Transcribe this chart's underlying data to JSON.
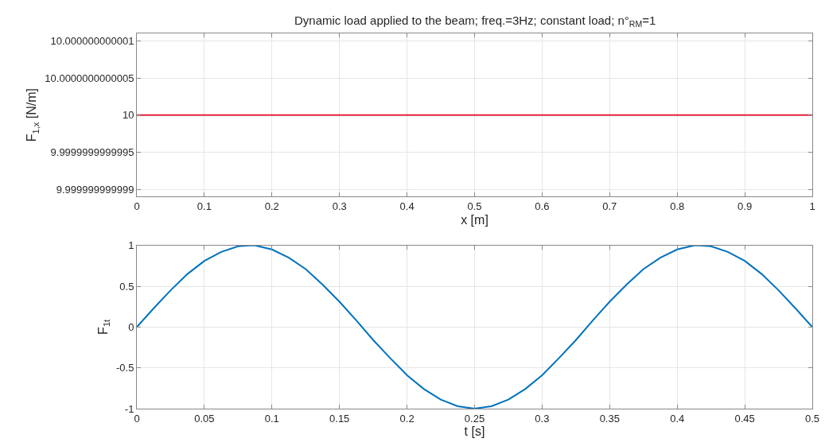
{
  "chart_data": [
    {
      "type": "line",
      "title": "Dynamic load applied to the beam; freq.=3Hz; constant load; n°$_{RM}$=1",
      "xlabel": "x [m]",
      "ylabel": "F$_{1,x}$ [N/m]",
      "x": [
        0,
        0.25,
        0.5,
        0.75,
        1
      ],
      "series": [
        {
          "color": "#e4213b",
          "values": [
            10,
            10,
            10,
            10,
            10
          ]
        }
      ],
      "xlim": [
        0,
        1
      ],
      "xticks": [
        0,
        0.1,
        0.2,
        0.3,
        0.4,
        0.5,
        0.6,
        0.7,
        0.8,
        0.9,
        1
      ],
      "ylim": [
        9.9999999999989,
        10.0000000000011
      ],
      "yticks": [
        {
          "value": 9.999999999999,
          "label": "9.999999999999"
        },
        {
          "value": 9.9999999999995,
          "label": "9.9999999999995"
        },
        10,
        {
          "value": 10.0000000000005,
          "label": "10.0000000000005"
        },
        {
          "value": 10.000000000001,
          "label": "10.000000000001"
        }
      ],
      "grid": true,
      "line_style": "solid"
    },
    {
      "type": "line",
      "xlabel": "t [s]",
      "ylabel": "F$_{1t}$",
      "x": [
        0,
        0.0125,
        0.025,
        0.0375,
        0.05,
        0.0625,
        0.075,
        0.0833,
        0.0875,
        0.1,
        0.1125,
        0.125,
        0.1375,
        0.15,
        0.1625,
        0.175,
        0.1875,
        0.2,
        0.2125,
        0.225,
        0.2375,
        0.25,
        0.2625,
        0.275,
        0.2875,
        0.3,
        0.3125,
        0.325,
        0.3375,
        0.35,
        0.3625,
        0.375,
        0.3875,
        0.4,
        0.4125,
        0.4167,
        0.425,
        0.4375,
        0.45,
        0.4625,
        0.475,
        0.4875,
        0.5
      ],
      "series": [
        {
          "color": "#0072bd",
          "values": [
            0,
            0.23,
            0.45,
            0.65,
            0.81,
            0.92,
            0.99,
            1,
            1.0,
            0.95,
            0.85,
            0.71,
            0.52,
            0.31,
            0.08,
            -0.16,
            -0.38,
            -0.59,
            -0.76,
            -0.89,
            -0.97,
            -1,
            -0.97,
            -0.89,
            -0.76,
            -0.59,
            -0.38,
            -0.16,
            0.08,
            0.31,
            0.52,
            0.71,
            0.85,
            0.95,
            1.0,
            1,
            0.99,
            0.92,
            0.81,
            0.65,
            0.45,
            0.23,
            0
          ]
        }
      ],
      "xlim": [
        0,
        0.5
      ],
      "xticks": [
        0,
        0.05,
        0.1,
        0.15,
        0.2,
        0.25,
        0.3,
        0.35,
        0.4,
        0.45,
        0.5
      ],
      "ylim": [
        -1,
        1
      ],
      "yticks": [
        -1,
        -0.5,
        0,
        0.5,
        1
      ],
      "grid": true,
      "line_style": "solid"
    }
  ]
}
